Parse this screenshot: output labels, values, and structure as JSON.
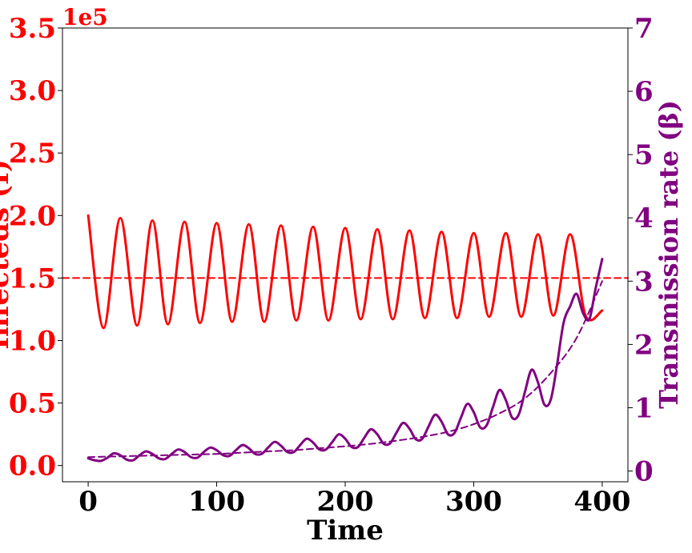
{
  "chart_data": {
    "type": "line",
    "xlabel": "Time",
    "ylabel_left": "Infecteds (I)",
    "ylabel_right": "Transmission rate (β)",
    "left_axis_multiplier": "1e5",
    "xlim": [
      -20,
      420
    ],
    "ylim_left": [
      -0.13,
      3.5
    ],
    "ylim_right": [
      -0.17,
      7
    ],
    "xticks": [
      "0",
      "100",
      "200",
      "300",
      "400"
    ],
    "yticks_left": [
      "0.0",
      "0.5",
      "1.0",
      "1.5",
      "2.0",
      "2.5",
      "3.0",
      "3.5"
    ],
    "yticks_right": [
      "0",
      "1",
      "2",
      "3",
      "4",
      "5",
      "6",
      "7"
    ],
    "colors": {
      "infecteds": "#ff0000",
      "beta": "#800080"
    },
    "series": [
      {
        "axis": "left",
        "style": "solid",
        "x": [
          0,
          12,
          25,
          38,
          50,
          62,
          75,
          87,
          100,
          112,
          125,
          137,
          150,
          162,
          175,
          187,
          200,
          212,
          225,
          237,
          250,
          262,
          275,
          287,
          300,
          312,
          325,
          337,
          350,
          362,
          375,
          387,
          400
        ],
        "values": [
          2.0,
          1.1,
          1.98,
          1.12,
          1.96,
          1.13,
          1.95,
          1.14,
          1.94,
          1.15,
          1.93,
          1.15,
          1.92,
          1.16,
          1.91,
          1.16,
          1.9,
          1.17,
          1.89,
          1.17,
          1.88,
          1.18,
          1.87,
          1.18,
          1.86,
          1.19,
          1.86,
          1.19,
          1.85,
          1.2,
          1.85,
          1.2,
          1.24
        ]
      },
      {
        "axis": "left",
        "style": "dashed",
        "x": [
          -20,
          420
        ],
        "values": [
          1.5,
          1.5
        ]
      },
      {
        "axis": "right",
        "style": "solid",
        "x": [
          0,
          5,
          10,
          15,
          20,
          25,
          30,
          35,
          40,
          45,
          50,
          55,
          60,
          65,
          70,
          75,
          80,
          85,
          90,
          95,
          100,
          105,
          110,
          115,
          120,
          125,
          130,
          135,
          140,
          145,
          150,
          155,
          160,
          165,
          170,
          175,
          180,
          185,
          190,
          195,
          200,
          205,
          210,
          215,
          220,
          225,
          230,
          235,
          240,
          245,
          250,
          255,
          260,
          265,
          270,
          275,
          280,
          285,
          290,
          295,
          300,
          305,
          310,
          315,
          320,
          325,
          330,
          335,
          340,
          345,
          350,
          355,
          360,
          365,
          370,
          375,
          380,
          385,
          390,
          395,
          400
        ],
        "values": [
          0.2,
          0.17,
          0.16,
          0.21,
          0.28,
          0.25,
          0.18,
          0.17,
          0.25,
          0.31,
          0.27,
          0.2,
          0.19,
          0.27,
          0.34,
          0.3,
          0.22,
          0.21,
          0.3,
          0.37,
          0.33,
          0.25,
          0.24,
          0.33,
          0.41,
          0.36,
          0.27,
          0.27,
          0.37,
          0.46,
          0.4,
          0.3,
          0.3,
          0.41,
          0.51,
          0.45,
          0.34,
          0.34,
          0.46,
          0.58,
          0.51,
          0.38,
          0.38,
          0.53,
          0.66,
          0.58,
          0.43,
          0.44,
          0.61,
          0.76,
          0.67,
          0.5,
          0.51,
          0.71,
          0.89,
          0.78,
          0.58,
          0.6,
          0.84,
          1.06,
          0.93,
          0.69,
          0.72,
          1.01,
          1.28,
          1.12,
          0.84,
          0.89,
          1.26,
          1.6,
          1.4,
          1.05,
          1.13,
          1.7,
          2.35,
          2.6,
          2.8,
          2.5,
          2.4,
          2.9,
          3.35
        ]
      },
      {
        "axis": "right",
        "style": "dashed",
        "x": [
          0,
          20,
          40,
          60,
          80,
          100,
          120,
          140,
          160,
          180,
          200,
          220,
          240,
          260,
          280,
          300,
          320,
          340,
          360,
          380,
          400
        ],
        "values": [
          0.22,
          0.23,
          0.24,
          0.25,
          0.26,
          0.27,
          0.29,
          0.31,
          0.33,
          0.36,
          0.39,
          0.43,
          0.48,
          0.54,
          0.62,
          0.74,
          0.91,
          1.15,
          1.55,
          2.1,
          3.0
        ]
      }
    ]
  }
}
